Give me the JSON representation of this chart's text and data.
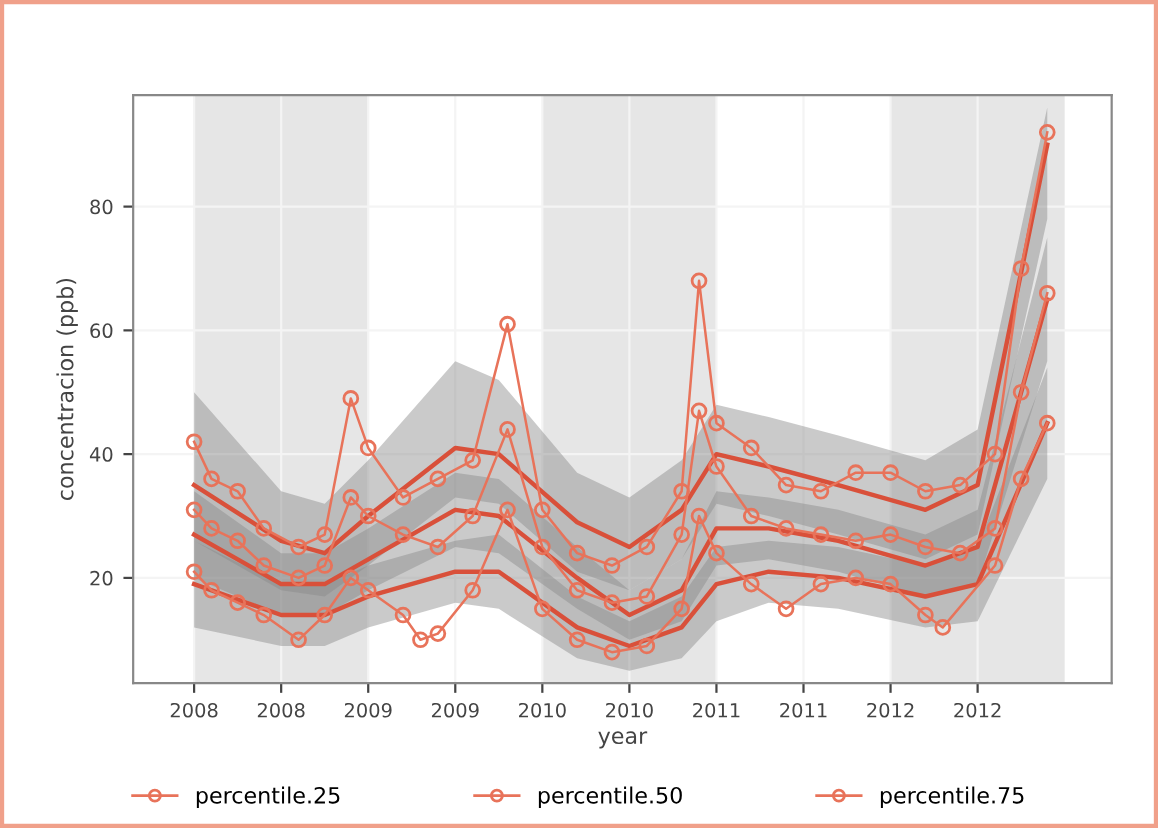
{
  "chart_data": {
    "type": "line",
    "xlabel": "year",
    "ylabel": "concentracion (ppb)",
    "xlim": [
      2007.65,
      2013.27
    ],
    "ylim": [
      3,
      98
    ],
    "xticks": [
      {
        "value": 2008,
        "label": "2008"
      },
      {
        "value": 2008.5,
        "label": "2008"
      },
      {
        "value": 2009,
        "label": "2009"
      },
      {
        "value": 2009.5,
        "label": "2009"
      },
      {
        "value": 2010,
        "label": "2010"
      },
      {
        "value": 2010.5,
        "label": "2010"
      },
      {
        "value": 2011,
        "label": "2011"
      },
      {
        "value": 2011.5,
        "label": "2011"
      },
      {
        "value": 2012,
        "label": "2012"
      },
      {
        "value": 2012.5,
        "label": "2012"
      }
    ],
    "yticks": [
      20,
      40,
      60,
      80
    ],
    "grid": true,
    "legend": "bottom",
    "bands": [
      {
        "axis": "x",
        "from": 2008,
        "to": 2009,
        "color": "#e6e6e6"
      },
      {
        "axis": "x",
        "from": 2010,
        "to": 2011,
        "color": "#e6e6e6"
      },
      {
        "axis": "x",
        "from": 2012,
        "to": 2013,
        "color": "#e6e6e6"
      }
    ],
    "series": [
      {
        "name": "percentile.25",
        "color": "#e8735a",
        "marker": "circle",
        "x": [
          2008.0,
          2008.1,
          2008.25,
          2008.4,
          2008.6,
          2008.75,
          2008.9,
          2009.0,
          2009.2,
          2009.3,
          2009.4,
          2009.6,
          2009.8,
          2010.0,
          2010.2,
          2010.4,
          2010.6,
          2010.8,
          2010.9,
          2011.0,
          2011.2,
          2011.4,
          2011.6,
          2011.8,
          2012.0,
          2012.2,
          2012.3,
          2012.6,
          2012.75,
          2012.9
        ],
        "values": [
          21,
          18,
          16,
          14,
          10,
          14,
          20,
          18,
          14,
          10,
          11,
          18,
          31,
          15,
          10,
          8,
          9,
          15,
          30,
          24,
          19,
          15,
          19,
          20,
          19,
          14,
          12,
          22,
          36,
          45
        ]
      },
      {
        "name": "percentile.50",
        "color": "#e8735a",
        "marker": "circle",
        "x": [
          2008.0,
          2008.1,
          2008.25,
          2008.4,
          2008.6,
          2008.75,
          2008.9,
          2009.0,
          2009.2,
          2009.4,
          2009.6,
          2009.8,
          2010.0,
          2010.2,
          2010.4,
          2010.6,
          2010.8,
          2010.9,
          2011.0,
          2011.2,
          2011.4,
          2011.6,
          2011.8,
          2012.0,
          2012.2,
          2012.4,
          2012.6,
          2012.75,
          2012.9
        ],
        "values": [
          31,
          28,
          26,
          22,
          20,
          22,
          33,
          30,
          27,
          25,
          30,
          44,
          25,
          18,
          16,
          17,
          27,
          47,
          38,
          30,
          28,
          27,
          26,
          27,
          25,
          24,
          28,
          50,
          66
        ]
      },
      {
        "name": "percentile.75",
        "color": "#e8735a",
        "marker": "circle",
        "x": [
          2008.0,
          2008.1,
          2008.25,
          2008.4,
          2008.6,
          2008.75,
          2008.9,
          2009.0,
          2009.2,
          2009.4,
          2009.6,
          2009.8,
          2010.0,
          2010.2,
          2010.4,
          2010.6,
          2010.8,
          2010.9,
          2011.0,
          2011.2,
          2011.4,
          2011.6,
          2011.8,
          2012.0,
          2012.2,
          2012.4,
          2012.6,
          2012.75,
          2012.9
        ],
        "values": [
          42,
          36,
          34,
          28,
          25,
          27,
          49,
          41,
          33,
          36,
          39,
          61,
          31,
          24,
          22,
          25,
          34,
          68,
          45,
          41,
          35,
          34,
          37,
          37,
          34,
          35,
          40,
          70,
          92
        ]
      },
      {
        "color": "#d9503a",
        "marker": "none",
        "x": [
          2008,
          2008.5,
          2008.75,
          2009.0,
          2009.5,
          2009.75,
          2010.2,
          2010.5,
          2010.8,
          2011.0,
          2011.3,
          2011.7,
          2012.2,
          2012.5,
          2012.9
        ],
        "values": [
          19,
          14,
          14,
          17,
          21,
          21,
          12,
          9,
          12,
          19,
          21,
          20,
          17,
          19,
          45
        ],
        "lower": [
          12,
          9,
          9,
          12,
          16,
          15,
          7,
          5,
          7,
          13,
          16,
          15,
          12,
          13,
          36
        ],
        "upper": [
          26,
          19,
          19,
          22,
          26,
          27,
          17,
          13,
          17,
          25,
          26,
          25,
          22,
          25,
          54
        ]
      },
      {
        "color": "#d9503a",
        "marker": "none",
        "x": [
          2008,
          2008.5,
          2008.75,
          2009.0,
          2009.5,
          2009.75,
          2010.2,
          2010.5,
          2010.8,
          2011.0,
          2011.3,
          2011.7,
          2012.2,
          2012.5,
          2012.9
        ],
        "values": [
          27,
          19,
          19,
          23,
          31,
          30,
          20,
          14,
          18,
          28,
          28,
          26,
          22,
          25,
          65
        ],
        "lower": [
          20,
          14,
          14,
          18,
          25,
          24,
          15,
          10,
          13,
          22,
          23,
          21,
          17,
          19,
          55
        ],
        "upper": [
          34,
          24,
          24,
          28,
          37,
          36,
          25,
          18,
          23,
          34,
          33,
          31,
          27,
          31,
          75
        ]
      },
      {
        "color": "#d9503a",
        "marker": "none",
        "x": [
          2008,
          2008.5,
          2008.75,
          2009.0,
          2009.5,
          2009.75,
          2010.2,
          2010.5,
          2010.8,
          2011.0,
          2011.3,
          2011.7,
          2012.2,
          2012.5,
          2012.9
        ],
        "values": [
          35,
          26,
          24,
          30,
          41,
          40,
          29,
          25,
          31,
          40,
          38,
          35,
          31,
          35,
          90
        ],
        "lower": [
          26,
          18,
          17,
          22,
          33,
          32,
          21,
          18,
          23,
          32,
          30,
          27,
          23,
          27,
          78
        ],
        "upper": [
          50,
          34,
          32,
          39,
          55,
          52,
          37,
          33,
          39,
          48,
          46,
          43,
          39,
          44,
          96
        ]
      }
    ]
  }
}
